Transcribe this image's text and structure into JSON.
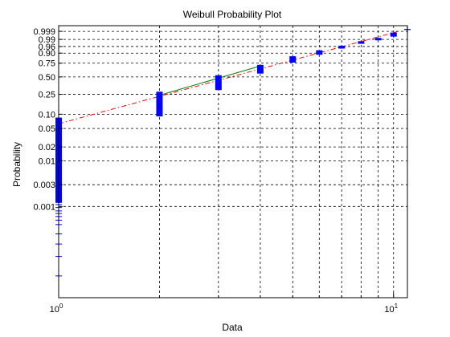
{
  "chart_data": {
    "type": "scatter",
    "title": "Weibull Probability Plot",
    "xlabel": "Data",
    "ylabel": "Probability",
    "x_scale": "log",
    "y_scale": "weibull",
    "xlim": [
      1,
      11
    ],
    "ylim_probability": [
      1e-05,
      0.9999
    ],
    "grid": true,
    "x_ticks": [
      {
        "value": 1,
        "label": "10",
        "exp": "0"
      },
      {
        "value": 10,
        "label": "10",
        "exp": "1"
      }
    ],
    "x_minor_ticks": [
      2,
      3,
      4,
      5,
      6,
      7,
      8,
      9
    ],
    "y_ticks": [
      {
        "value": 0.999,
        "label": "0.999"
      },
      {
        "value": 0.99,
        "label": "0.99"
      },
      {
        "value": 0.96,
        "label": "0.96"
      },
      {
        "value": 0.9,
        "label": "0.90"
      },
      {
        "value": 0.75,
        "label": "0.75"
      },
      {
        "value": 0.5,
        "label": "0.50"
      },
      {
        "value": 0.25,
        "label": "0.25"
      },
      {
        "value": 0.1,
        "label": "0.10"
      },
      {
        "value": 0.05,
        "label": "0.05"
      },
      {
        "value": 0.02,
        "label": "0.02"
      },
      {
        "value": 0.01,
        "label": "0.01"
      },
      {
        "value": 0.003,
        "label": "0.003"
      },
      {
        "value": 0.001,
        "label": "0.001"
      }
    ],
    "data_groups": [
      {
        "x": 1,
        "p_min": 3e-05,
        "p_max": 0.085,
        "cluster": [
          0.0012,
          0.085
        ],
        "scatter": [
          3e-05,
          8e-05,
          0.00015,
          0.00025,
          0.0004,
          0.0005,
          0.0006,
          0.0007,
          0.0008,
          0.00095,
          0.0011
        ]
      },
      {
        "x": 2,
        "p_min": 0.09,
        "p_max": 0.28
      },
      {
        "x": 3,
        "p_min": 0.3,
        "p_max": 0.53
      },
      {
        "x": 4,
        "p_min": 0.56,
        "p_max": 0.72
      },
      {
        "x": 5,
        "p_min": 0.76,
        "p_max": 0.86
      },
      {
        "x": 6,
        "p_min": 0.88,
        "p_max": 0.93
      },
      {
        "x": 7,
        "p_min": 0.945,
        "p_max": 0.965
      },
      {
        "x": 8,
        "p_min": 0.975,
        "p_max": 0.985
      },
      {
        "x": 9,
        "p_min": 0.988,
        "p_max": 0.993
      },
      {
        "x": 10,
        "p_min": 0.995,
        "p_max": 0.9985
      },
      {
        "x": 11,
        "p_min": 0.9995,
        "p_max": 0.9995
      }
    ],
    "fit_line": {
      "color": "#ff0000",
      "style": "dash-dot",
      "points": [
        {
          "x": 1,
          "p": 0.063
        },
        {
          "x": 10.5,
          "p": 0.9992
        }
      ]
    },
    "solid_fit_segment": {
      "color": "#008000",
      "points": [
        {
          "x": 2,
          "p": 0.24
        },
        {
          "x": 4,
          "p": 0.7
        }
      ]
    },
    "marker_color": "#0000ff"
  }
}
